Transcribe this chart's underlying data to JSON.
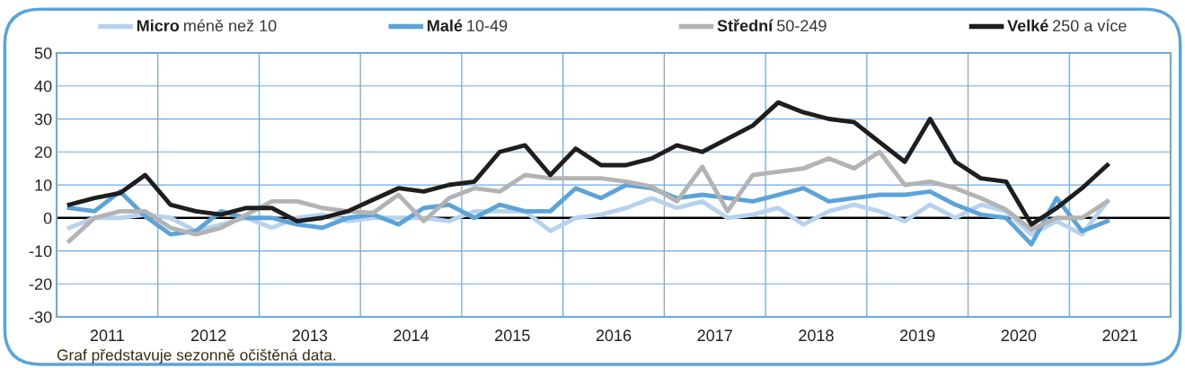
{
  "chart_data": {
    "type": "line",
    "x": [
      2011.125,
      2011.375,
      2011.625,
      2011.875,
      2012.125,
      2012.375,
      2012.625,
      2012.875,
      2013.125,
      2013.375,
      2013.625,
      2013.875,
      2014.125,
      2014.375,
      2014.625,
      2014.875,
      2015.125,
      2015.375,
      2015.625,
      2015.875,
      2016.125,
      2016.375,
      2016.625,
      2016.875,
      2017.125,
      2017.375,
      2017.625,
      2017.875,
      2018.125,
      2018.375,
      2018.625,
      2018.875,
      2019.125,
      2019.375,
      2019.625,
      2019.875,
      2020.125,
      2020.375,
      2020.625,
      2020.875,
      2021.125,
      2021.375
    ],
    "series": [
      {
        "name": "Micro méně než 10",
        "color": "#b7d2ee",
        "values": [
          -3,
          0,
          0,
          1,
          0,
          -4,
          -2,
          0,
          -3,
          0,
          1,
          -1,
          0,
          0,
          0,
          -1,
          2,
          2,
          2,
          -4,
          0,
          1,
          3,
          6,
          3,
          5,
          0,
          1,
          3,
          -2,
          2,
          4,
          2,
          -1,
          4,
          0,
          4,
          2,
          -5,
          -1,
          -5,
          5
        ]
      },
      {
        "name": "Malé 10-49",
        "color": "#5ba3d9",
        "values": [
          3,
          2,
          8,
          0.5,
          -5,
          -4,
          2,
          0,
          0,
          -2,
          -3,
          0,
          1,
          -2,
          3,
          4,
          0,
          4,
          2,
          2,
          9,
          6,
          10,
          9,
          6,
          7,
          6,
          5,
          7,
          9,
          5,
          6,
          7,
          7,
          8,
          4,
          1,
          0,
          -8,
          6,
          -4,
          -1
        ]
      },
      {
        "name": "Střední 50-249",
        "color": "#b3b3b3",
        "values": [
          -7,
          0,
          2,
          2,
          -3,
          -5,
          -3,
          1,
          5,
          5,
          3,
          2,
          1.5,
          7,
          -1,
          6,
          9,
          8,
          13,
          12,
          12,
          12,
          11,
          9.5,
          5,
          15.5,
          2,
          13,
          14,
          15,
          18,
          15,
          20,
          10,
          11,
          9,
          6,
          2.5,
          -3.5,
          0,
          0,
          5
        ]
      },
      {
        "name": "Velké 250 a více",
        "color": "#1e1e1e",
        "values": [
          4,
          6,
          7.5,
          13,
          4,
          2,
          1,
          3,
          3,
          -1,
          0,
          2,
          5.5,
          9,
          8,
          10,
          11,
          20,
          22,
          13,
          21,
          16,
          16,
          18,
          22,
          20,
          24,
          28,
          35,
          32,
          30,
          29,
          23,
          17,
          30,
          17,
          12,
          11,
          -2,
          3,
          9,
          16
        ]
      }
    ],
    "xlim": [
      2011,
      2022
    ],
    "xticks": [
      {
        "value": 2011,
        "label": null
      },
      {
        "value": 2012,
        "label": null
      },
      {
        "value": 2013,
        "label": null
      },
      {
        "value": 2014,
        "label": null
      },
      {
        "value": 2015,
        "label": null
      },
      {
        "value": 2016,
        "label": null
      },
      {
        "value": 2017,
        "label": null
      },
      {
        "value": 2018,
        "label": null
      },
      {
        "value": 2019,
        "label": null
      },
      {
        "value": 2020,
        "label": null
      },
      {
        "value": 2021,
        "label": null
      },
      {
        "value": 2022,
        "label": null
      },
      {
        "value": 2011.5,
        "label": "2011"
      },
      {
        "value": 2012.5,
        "label": "2012"
      },
      {
        "value": 2013.5,
        "label": "2013"
      },
      {
        "value": 2014.5,
        "label": "2014"
      },
      {
        "value": 2015.5,
        "label": "2015"
      },
      {
        "value": 2016.5,
        "label": "2016"
      },
      {
        "value": 2017.5,
        "label": "2017"
      },
      {
        "value": 2018.5,
        "label": "2018"
      },
      {
        "value": 2019.5,
        "label": "2019"
      },
      {
        "value": 2020.5,
        "label": "2020"
      },
      {
        "value": 2021.5,
        "label": "2021"
      }
    ],
    "ylim": [
      -30,
      50
    ],
    "yticks": [
      -30,
      -20,
      -10,
      0,
      10,
      20,
      30,
      40,
      50
    ],
    "grid": true,
    "legend": "top",
    "marker": "none",
    "line_style": "solid",
    "ref_lines": [
      {
        "axis": "y",
        "value": 0,
        "label": null,
        "color": "#000000"
      }
    ],
    "annotations": [
      "Graf představuje sezonně očištěná data."
    ]
  }
}
